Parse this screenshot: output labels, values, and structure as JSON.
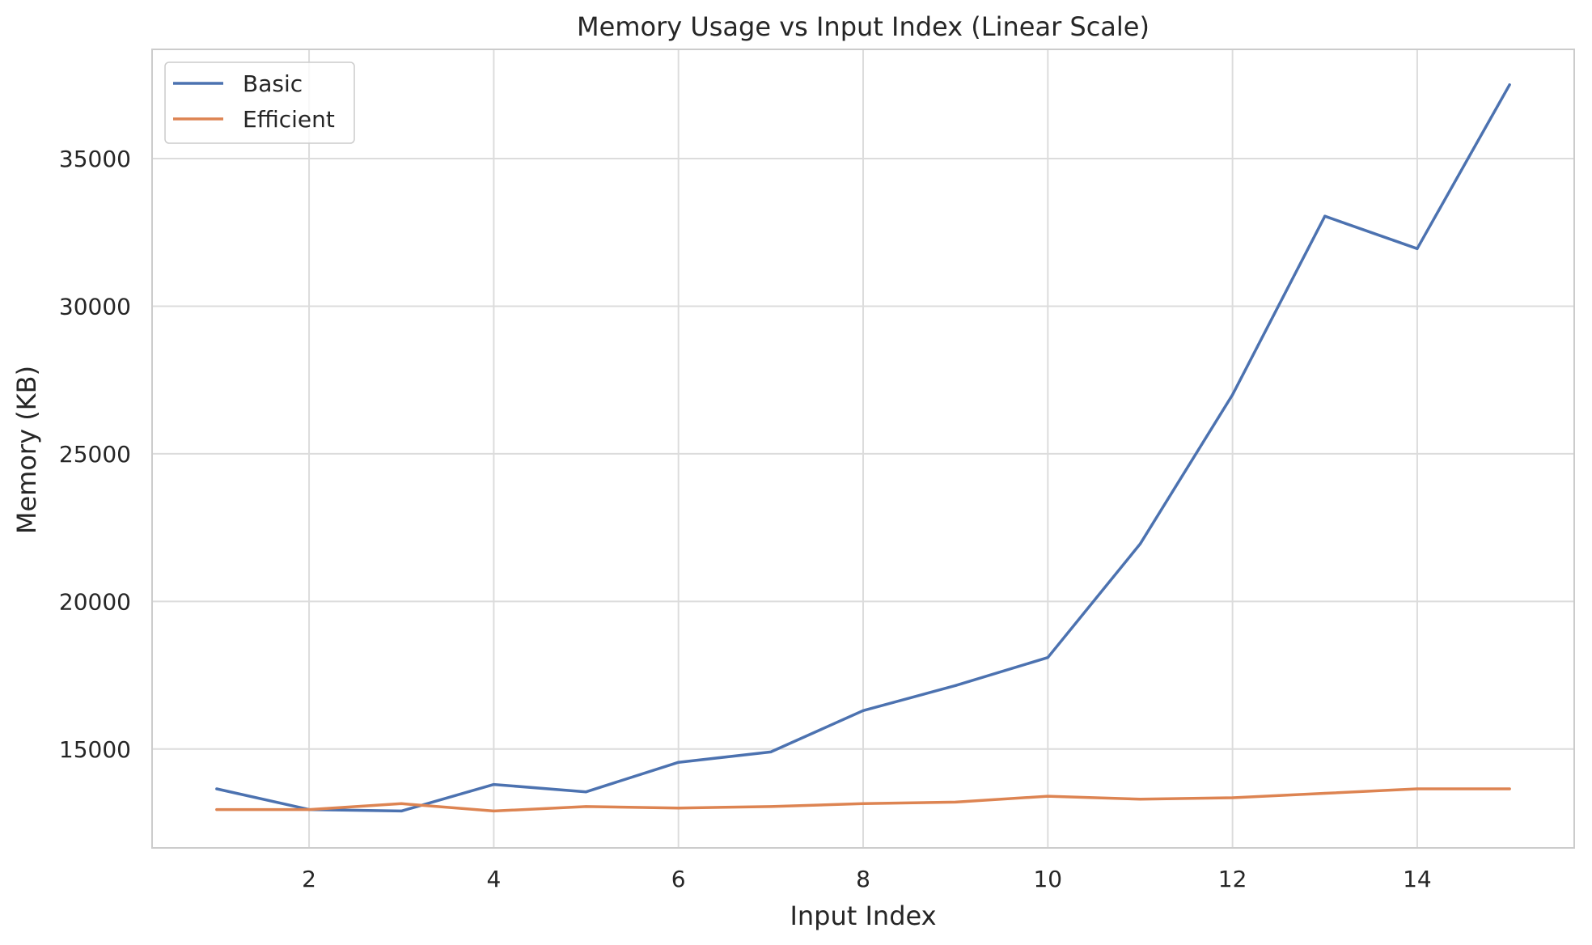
{
  "chart_data": {
    "type": "line",
    "title": "Memory Usage vs Input Index (Linear Scale)",
    "xlabel": "Input Index",
    "ylabel": "Memory (KB)",
    "x": [
      1,
      2,
      3,
      4,
      5,
      6,
      7,
      8,
      9,
      10,
      11,
      12,
      13,
      14,
      15
    ],
    "xlim": [
      0.3,
      15.7
    ],
    "ylim": [
      11650,
      38700
    ],
    "xticks": [
      2,
      4,
      6,
      8,
      10,
      12,
      14
    ],
    "yticks": [
      15000,
      20000,
      25000,
      30000,
      35000
    ],
    "grid": true,
    "legend_position": "top-left",
    "series": [
      {
        "name": "Basic",
        "color": "#4c72b0",
        "values": [
          13650,
          12950,
          12900,
          13800,
          13550,
          14550,
          14900,
          16300,
          17150,
          18100,
          21950,
          27000,
          33050,
          31950,
          37500
        ]
      },
      {
        "name": "Efficient",
        "color": "#dd8452",
        "values": [
          12950,
          12950,
          13150,
          12900,
          13050,
          13000,
          13050,
          13150,
          13200,
          13400,
          13300,
          13350,
          13500,
          13650,
          13650
        ]
      }
    ]
  }
}
